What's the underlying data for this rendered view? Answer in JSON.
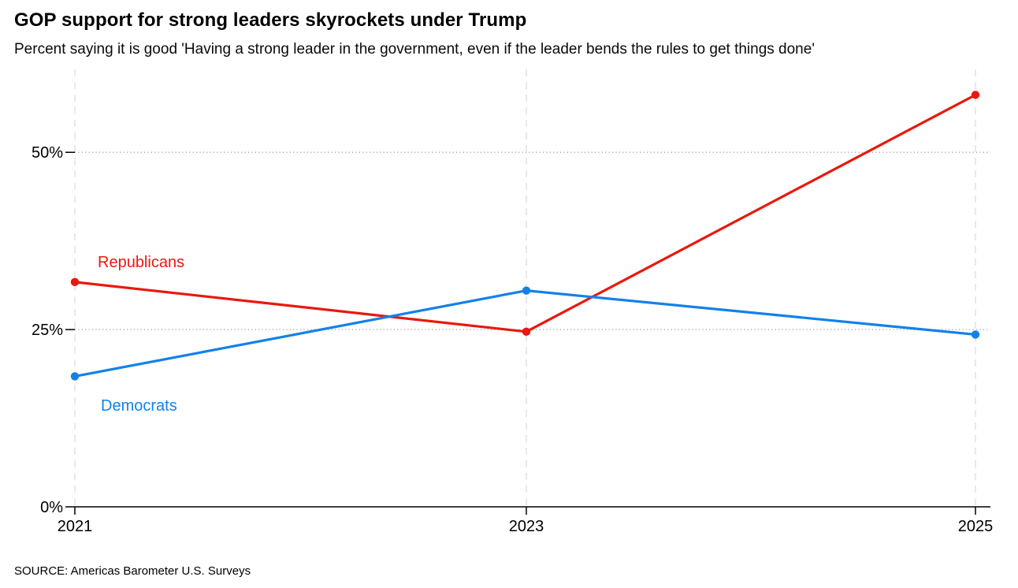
{
  "chart_data": {
    "type": "line",
    "title": "GOP support for strong leaders skyrockets under Trump",
    "subtitle": "Percent saying it is good 'Having a strong leader in the government, even if the leader bends the rules to get things done'",
    "source": "SOURCE: Americas Barometer U.S. Surveys",
    "x": [
      "2021",
      "2023",
      "2025"
    ],
    "xlabel": "",
    "ylabel": "",
    "yticks": [
      {
        "value": 0,
        "label": "0%"
      },
      {
        "value": 25,
        "label": "25%"
      },
      {
        "value": 50,
        "label": "50%"
      }
    ],
    "ylim": [
      0,
      61.7
    ],
    "grid": {
      "horizontal": "dotted",
      "vertical": "dashed"
    },
    "legend": "inline-labels",
    "series": [
      {
        "name": "Republicans",
        "color": "#e8190f",
        "values": [
          31.7,
          24.7,
          58.1
        ]
      },
      {
        "name": "Democrats",
        "color": "#1381e8",
        "values": [
          18.4,
          30.5,
          24.3
        ]
      }
    ]
  }
}
